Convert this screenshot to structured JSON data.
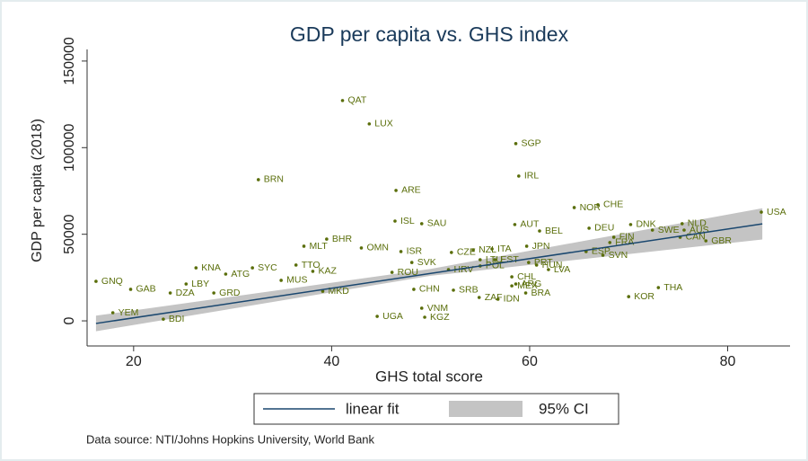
{
  "chart_data": {
    "type": "scatter",
    "title": "GDP per capita vs. GHS index",
    "x_label": "GHS total score",
    "y_label": "GDP per capita (2018)",
    "note": "Data source: NTI/Johns Hopkins University, World Bank",
    "color": "#5a6e0a",
    "xlim": [
      15.3,
      86.3
    ],
    "xticks": [
      20,
      40,
      60,
      80
    ],
    "ylim": [
      -14500,
      156700
    ],
    "yticks": [
      0,
      50000,
      100000,
      150000
    ],
    "labels": [
      "QAT",
      "LUX",
      "SGP",
      "IRL",
      "BRN",
      "ARE",
      "CHE",
      "NOR",
      "USA",
      "ISL",
      "SAU",
      "AUT",
      "DEU",
      "DNK",
      "NLD",
      "SWE",
      "AUS",
      "BEL",
      "CAN",
      "GBR",
      "FIN",
      "FRA",
      "BHR",
      "MLT",
      "OMN",
      "JPN",
      "ISR",
      "CZE",
      "NZL",
      "ITA",
      "ESP",
      "SVN",
      "KOR",
      "THA",
      "TTO",
      "SYC",
      "KNA",
      "ATG",
      "SVK",
      "EST",
      "LTU",
      "PRT",
      "LVA",
      "HUN",
      "POL",
      "HRV",
      "KAZ",
      "ROU",
      "GNQ",
      "LBY",
      "GAB",
      "DZA",
      "MUS",
      "CHL",
      "ARG",
      "MEX",
      "BRA",
      "SRB",
      "CHN",
      "MKD",
      "IDN",
      "ZAF",
      "KGZ",
      "UGA",
      "VNM",
      "YEM",
      "BDI",
      "GRD"
    ],
    "x": [
      41.1,
      43.8,
      58.6,
      58.9,
      32.6,
      46.5,
      66.9,
      64.5,
      83.4,
      46.4,
      49.1,
      58.5,
      66.0,
      70.2,
      75.4,
      72.4,
      75.6,
      61.0,
      75.2,
      77.8,
      68.5,
      68.1,
      39.5,
      37.2,
      43.0,
      59.7,
      47.0,
      52.1,
      54.3,
      56.2,
      65.7,
      67.4,
      70.0,
      73.0,
      36.4,
      32.0,
      26.3,
      29.3,
      48.1,
      56.5,
      55.0,
      59.9,
      61.9,
      60.7,
      55.0,
      51.8,
      38.1,
      46.1,
      16.2,
      25.3,
      19.7,
      23.7,
      34.9,
      58.2,
      58.6,
      58.2,
      59.6,
      52.3,
      48.3,
      39.1,
      56.8,
      54.9,
      49.4,
      44.6,
      49.1,
      17.9,
      23.0,
      28.1
    ],
    "y": [
      127200,
      113700,
      102300,
      83600,
      81500,
      75300,
      67000,
      65400,
      62800,
      57600,
      56100,
      55600,
      53500,
      55600,
      56100,
      52400,
      52400,
      51900,
      48300,
      46200,
      48300,
      45200,
      47200,
      43100,
      42100,
      43100,
      40000,
      39500,
      41000,
      41500,
      40000,
      37900,
      14000,
      19200,
      32200,
      30600,
      30600,
      27000,
      33700,
      35300,
      35300,
      33700,
      29600,
      32200,
      31700,
      29600,
      28600,
      28000,
      22800,
      21300,
      18200,
      16100,
      23400,
      25400,
      21300,
      20200,
      16100,
      17700,
      18200,
      17100,
      12500,
      13500,
      2100,
      2600,
      7300,
      4700,
      1000,
      16100
    ],
    "fit": {
      "name": "linear fit",
      "color": "#1a476f",
      "x": [
        16.2,
        83.5
      ],
      "values": [
        -1500,
        56000
      ]
    },
    "ci": {
      "name": "95% CI",
      "color": "#c4c4c4",
      "x": [
        16.2,
        50,
        83.5
      ],
      "lower": [
        -6000,
        26000,
        47000
      ],
      "upper": [
        3000,
        30000,
        65000
      ]
    }
  }
}
